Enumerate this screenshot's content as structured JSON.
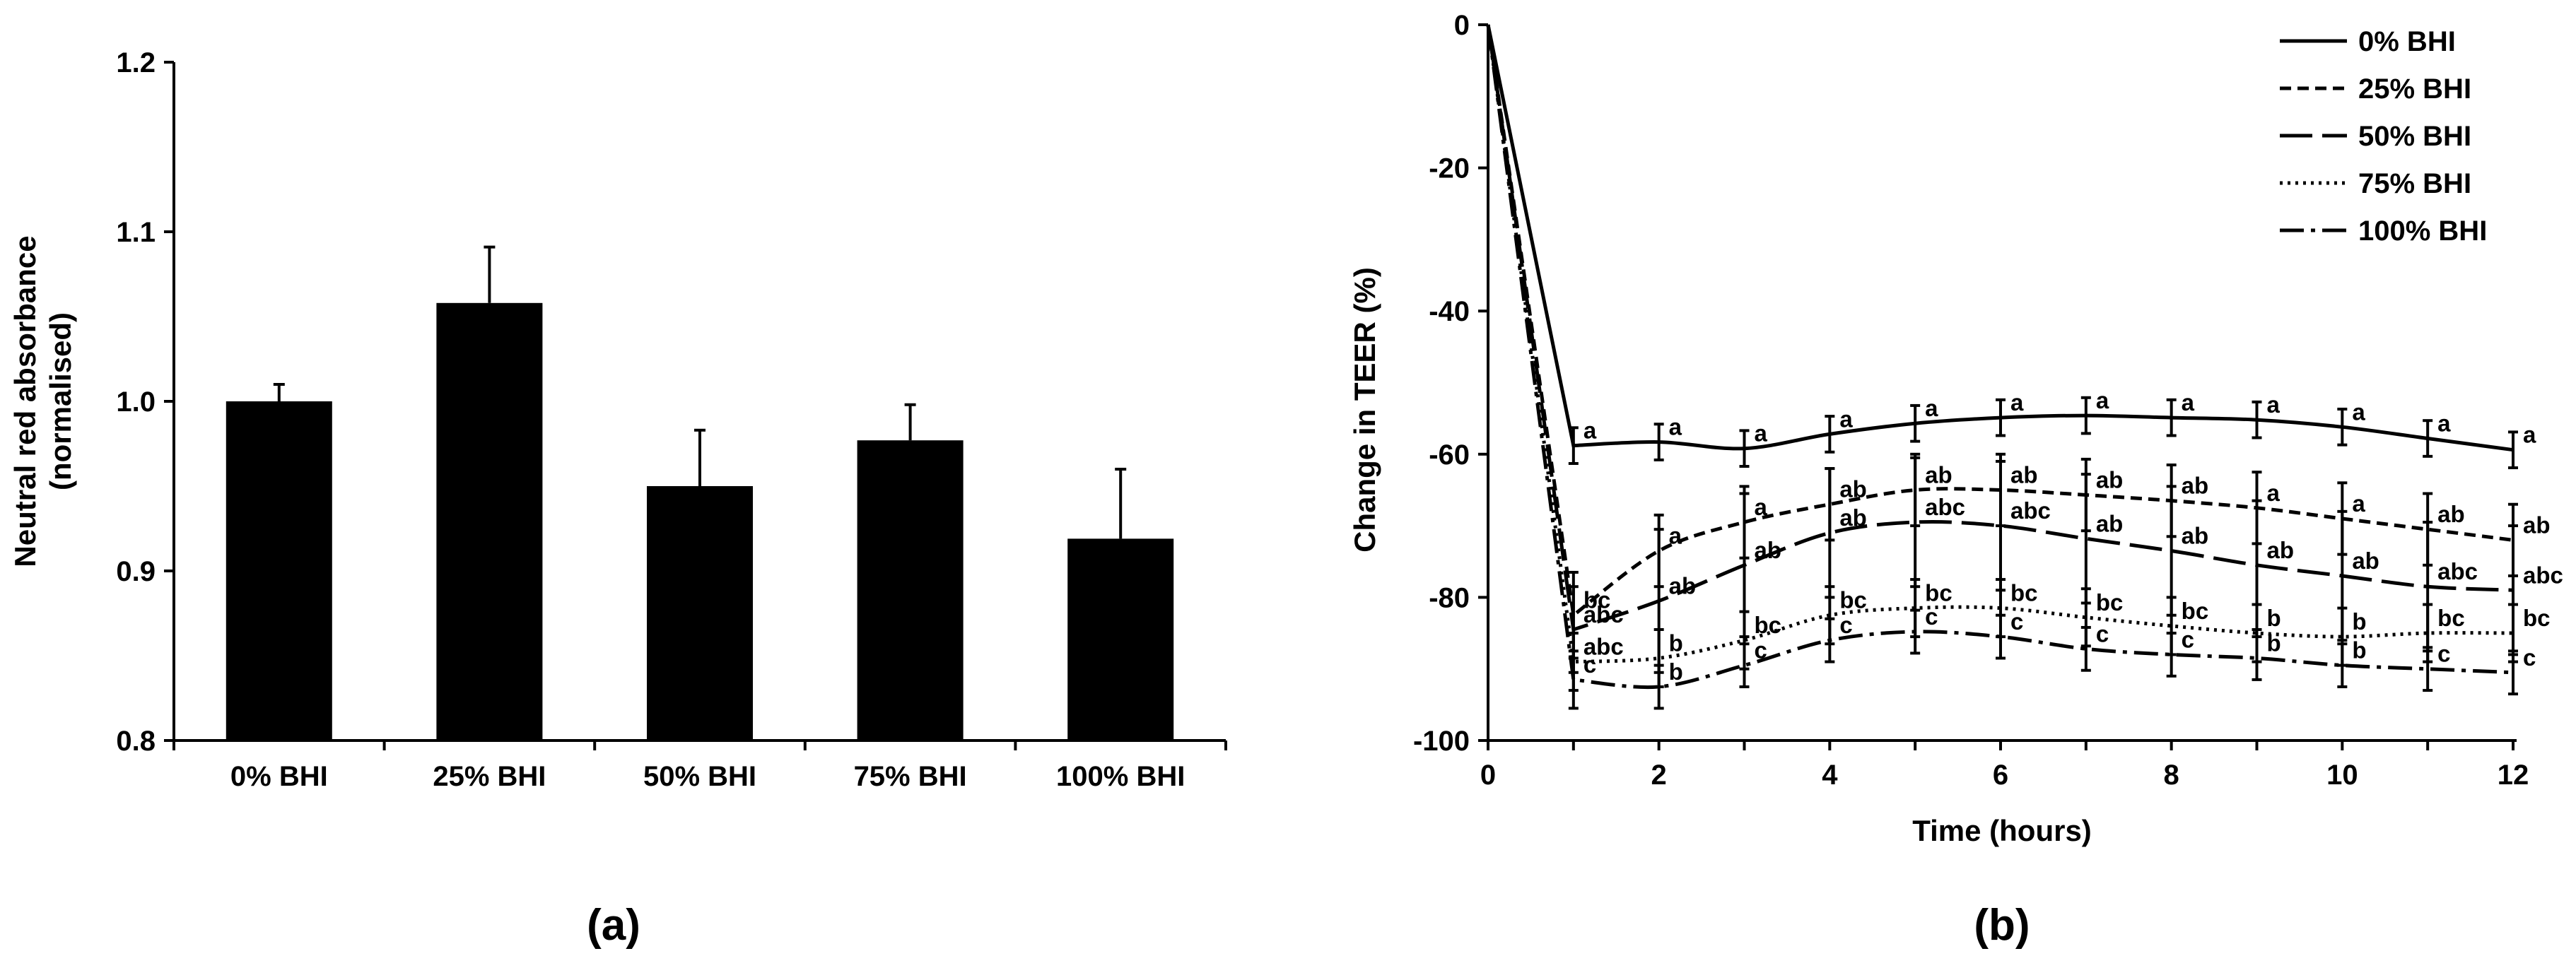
{
  "chart_data": [
    {
      "type": "bar",
      "panel_label": "(a)",
      "title": "",
      "xlabel": "",
      "ylabel_line1": "Neutral red absorbance",
      "ylabel_line2": "(normalised)",
      "ylim": [
        0.8,
        1.2
      ],
      "yticks": [
        "0.8",
        "0.9",
        "1.0",
        "1.1",
        "1.2"
      ],
      "categories": [
        "0% BHI",
        "25% BHI",
        "50% BHI",
        "75% BHI",
        "100% BHI"
      ],
      "values": [
        1.0,
        1.058,
        0.95,
        0.977,
        0.919
      ],
      "errors": [
        0.01,
        0.033,
        0.033,
        0.021,
        0.041
      ],
      "grid": false
    },
    {
      "type": "line",
      "panel_label": "(b)",
      "title": "",
      "xlabel": "Time (hours)",
      "ylabel": "Change in TEER (%)",
      "xlim": [
        0,
        12
      ],
      "ylim": [
        -100,
        0
      ],
      "xticks": [
        "0",
        "2",
        "4",
        "6",
        "8",
        "10",
        "12"
      ],
      "yticks": [
        "-100",
        "-80",
        "-60",
        "-40",
        "-20",
        "0"
      ],
      "x": [
        0,
        1,
        2,
        3,
        4,
        5,
        6,
        7,
        8,
        9,
        10,
        11,
        12
      ],
      "legend_position": "top-right",
      "grid": false,
      "series": [
        {
          "name": "0% BHI",
          "style": "solid",
          "values": [
            0,
            -58.8,
            -58.3,
            -59.2,
            -57.2,
            -55.7,
            -54.9,
            -54.6,
            -54.9,
            -55.2,
            -56.2,
            -57.8,
            -59.4
          ],
          "errors": [
            0,
            2.5,
            2.5,
            2.5,
            2.5,
            2.5,
            2.5,
            2.5,
            2.5,
            2.5,
            2.5,
            2.5,
            2.5
          ],
          "labels": [
            "",
            "a",
            "a",
            "a",
            "a",
            "a",
            "a",
            "a",
            "a",
            "a",
            "a",
            "a",
            "a"
          ]
        },
        {
          "name": "25% BHI",
          "style": "dashed",
          "values": [
            0,
            -82.5,
            -73.5,
            -69.5,
            -67.0,
            -65.0,
            -65.0,
            -65.7,
            -66.5,
            -67.5,
            -69.0,
            -70.5,
            -72.0
          ],
          "errors": [
            0,
            6,
            5,
            5,
            5,
            5,
            5,
            5,
            5,
            5,
            5,
            5,
            5
          ],
          "labels": [
            "",
            "bc",
            "a",
            "a",
            "ab",
            "ab",
            "ab",
            "ab",
            "ab",
            "a",
            "a",
            "ab",
            "ab"
          ]
        },
        {
          "name": "50% BHI",
          "style": "long-dash",
          "values": [
            0,
            -84.5,
            -80.5,
            -75.5,
            -71.0,
            -69.5,
            -70.0,
            -71.8,
            -73.5,
            -75.5,
            -77.0,
            -78.5,
            -79.0
          ],
          "errors": [
            0,
            6,
            10,
            10,
            9,
            9,
            9,
            9,
            9,
            9,
            9,
            9,
            9
          ],
          "labels": [
            "",
            "abc",
            "ab",
            "ab",
            "ab",
            "abc",
            "abc",
            "ab",
            "ab",
            "ab",
            "ab",
            "abc",
            "abc"
          ]
        },
        {
          "name": "75% BHI",
          "style": "dotted",
          "values": [
            0,
            -89.0,
            -88.5,
            -86.0,
            -82.5,
            -81.5,
            -81.5,
            -82.8,
            -84.0,
            -85.0,
            -85.5,
            -85.0,
            -85.0
          ],
          "errors": [
            0,
            4,
            4,
            4,
            4,
            4,
            4,
            4,
            4,
            4,
            4,
            4,
            4
          ],
          "labels": [
            "",
            "abc",
            "b",
            "bc",
            "bc",
            "bc",
            "bc",
            "bc",
            "bc",
            "b",
            "b",
            "bc",
            "bc"
          ]
        },
        {
          "name": "100% BHI",
          "style": "dash-dot",
          "values": [
            0,
            -91.5,
            -92.5,
            -89.5,
            -86.0,
            -84.8,
            -85.5,
            -87.2,
            -88.0,
            -88.5,
            -89.5,
            -90.0,
            -90.5
          ],
          "errors": [
            0,
            4,
            3,
            3,
            3,
            3,
            3,
            3,
            3,
            3,
            3,
            3,
            3
          ],
          "labels": [
            "",
            "c",
            "b",
            "c",
            "c",
            "c",
            "c",
            "c",
            "c",
            "b",
            "b",
            "c",
            "c"
          ]
        }
      ]
    }
  ]
}
